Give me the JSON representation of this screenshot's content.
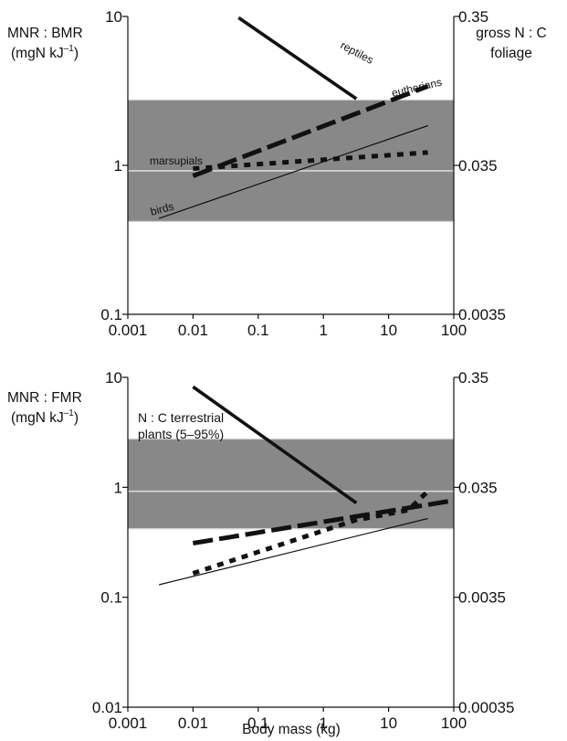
{
  "chart_data": [
    {
      "type": "line",
      "x_scale": "log",
      "y_scale": "log",
      "xlim": [
        0.001,
        100
      ],
      "ylim": [
        0.1,
        10
      ],
      "y2lim": [
        0.0035,
        0.35
      ],
      "x_tick_labels": [
        "0.001",
        "0.01",
        "0.1",
        "1",
        "10",
        "100"
      ],
      "y_tick_labels": [
        "0.1",
        "1",
        "10"
      ],
      "y2_tick_labels": [
        "0.0035",
        "0.035",
        "0.35"
      ],
      "ylabel_line1": "MNR : BMR",
      "ylabel_line2": "(mgN kJ",
      "ylabel_sup": "–1",
      "ylabel_close": ")",
      "y2label_line1": "gross N : C",
      "y2label_line2": "foliage",
      "band": {
        "ymin": 0.42,
        "ymax": 2.75,
        "median": 0.92,
        "color": "#888888"
      },
      "series": [
        {
          "name": "reptiles",
          "style": "solid-thick",
          "x": [
            0.05,
            3.2
          ],
          "y": [
            9.8,
            2.8
          ]
        },
        {
          "name": "eutherians",
          "style": "long-dash",
          "x": [
            0.01,
            40
          ],
          "y": [
            0.85,
            3.4
          ]
        },
        {
          "name": "marsupials",
          "style": "dotted-thick",
          "x": [
            0.01,
            40
          ],
          "y": [
            0.95,
            1.22
          ]
        },
        {
          "name": "birds",
          "style": "solid-thin",
          "x": [
            0.003,
            40
          ],
          "y": [
            0.44,
            1.85
          ]
        }
      ]
    },
    {
      "type": "line",
      "x_scale": "log",
      "y_scale": "log",
      "xlim": [
        0.001,
        100
      ],
      "ylim": [
        0.01,
        10
      ],
      "y2lim": [
        0.00035,
        0.35
      ],
      "x_tick_labels": [
        "0.001",
        "0.01",
        "0.1",
        "1",
        "10",
        "100"
      ],
      "y_tick_labels": [
        "0.01",
        "0.1",
        "1",
        "10"
      ],
      "y2_tick_labels": [
        "0.00035",
        "0.0035",
        "0.035",
        "0.35"
      ],
      "ylabel_line1": "MNR : FMR",
      "ylabel_line2": "(mgN kJ",
      "ylabel_sup": "–1",
      "ylabel_close": ")",
      "xlabel": "Body mass (kg)",
      "band": {
        "ymin": 0.42,
        "ymax": 2.75,
        "median": 0.92,
        "color": "#888888",
        "label_lines": [
          "N : C terrestrial",
          "plants (5–95%)"
        ]
      },
      "series": [
        {
          "name": "reptiles",
          "style": "solid-thick",
          "x": [
            0.01,
            3.2
          ],
          "y": [
            8.2,
            0.72
          ]
        },
        {
          "name": "eutherians",
          "style": "long-dash",
          "x": [
            0.01,
            100
          ],
          "y": [
            0.31,
            0.76
          ]
        },
        {
          "name": "marsupials",
          "style": "dotted-thick",
          "x": [
            0.01,
            3,
            20,
            40
          ],
          "y": [
            0.165,
            0.5,
            0.62,
            0.92
          ]
        },
        {
          "name": "birds",
          "style": "solid-thin",
          "x": [
            0.003,
            40
          ],
          "y": [
            0.13,
            0.52
          ]
        }
      ]
    }
  ]
}
